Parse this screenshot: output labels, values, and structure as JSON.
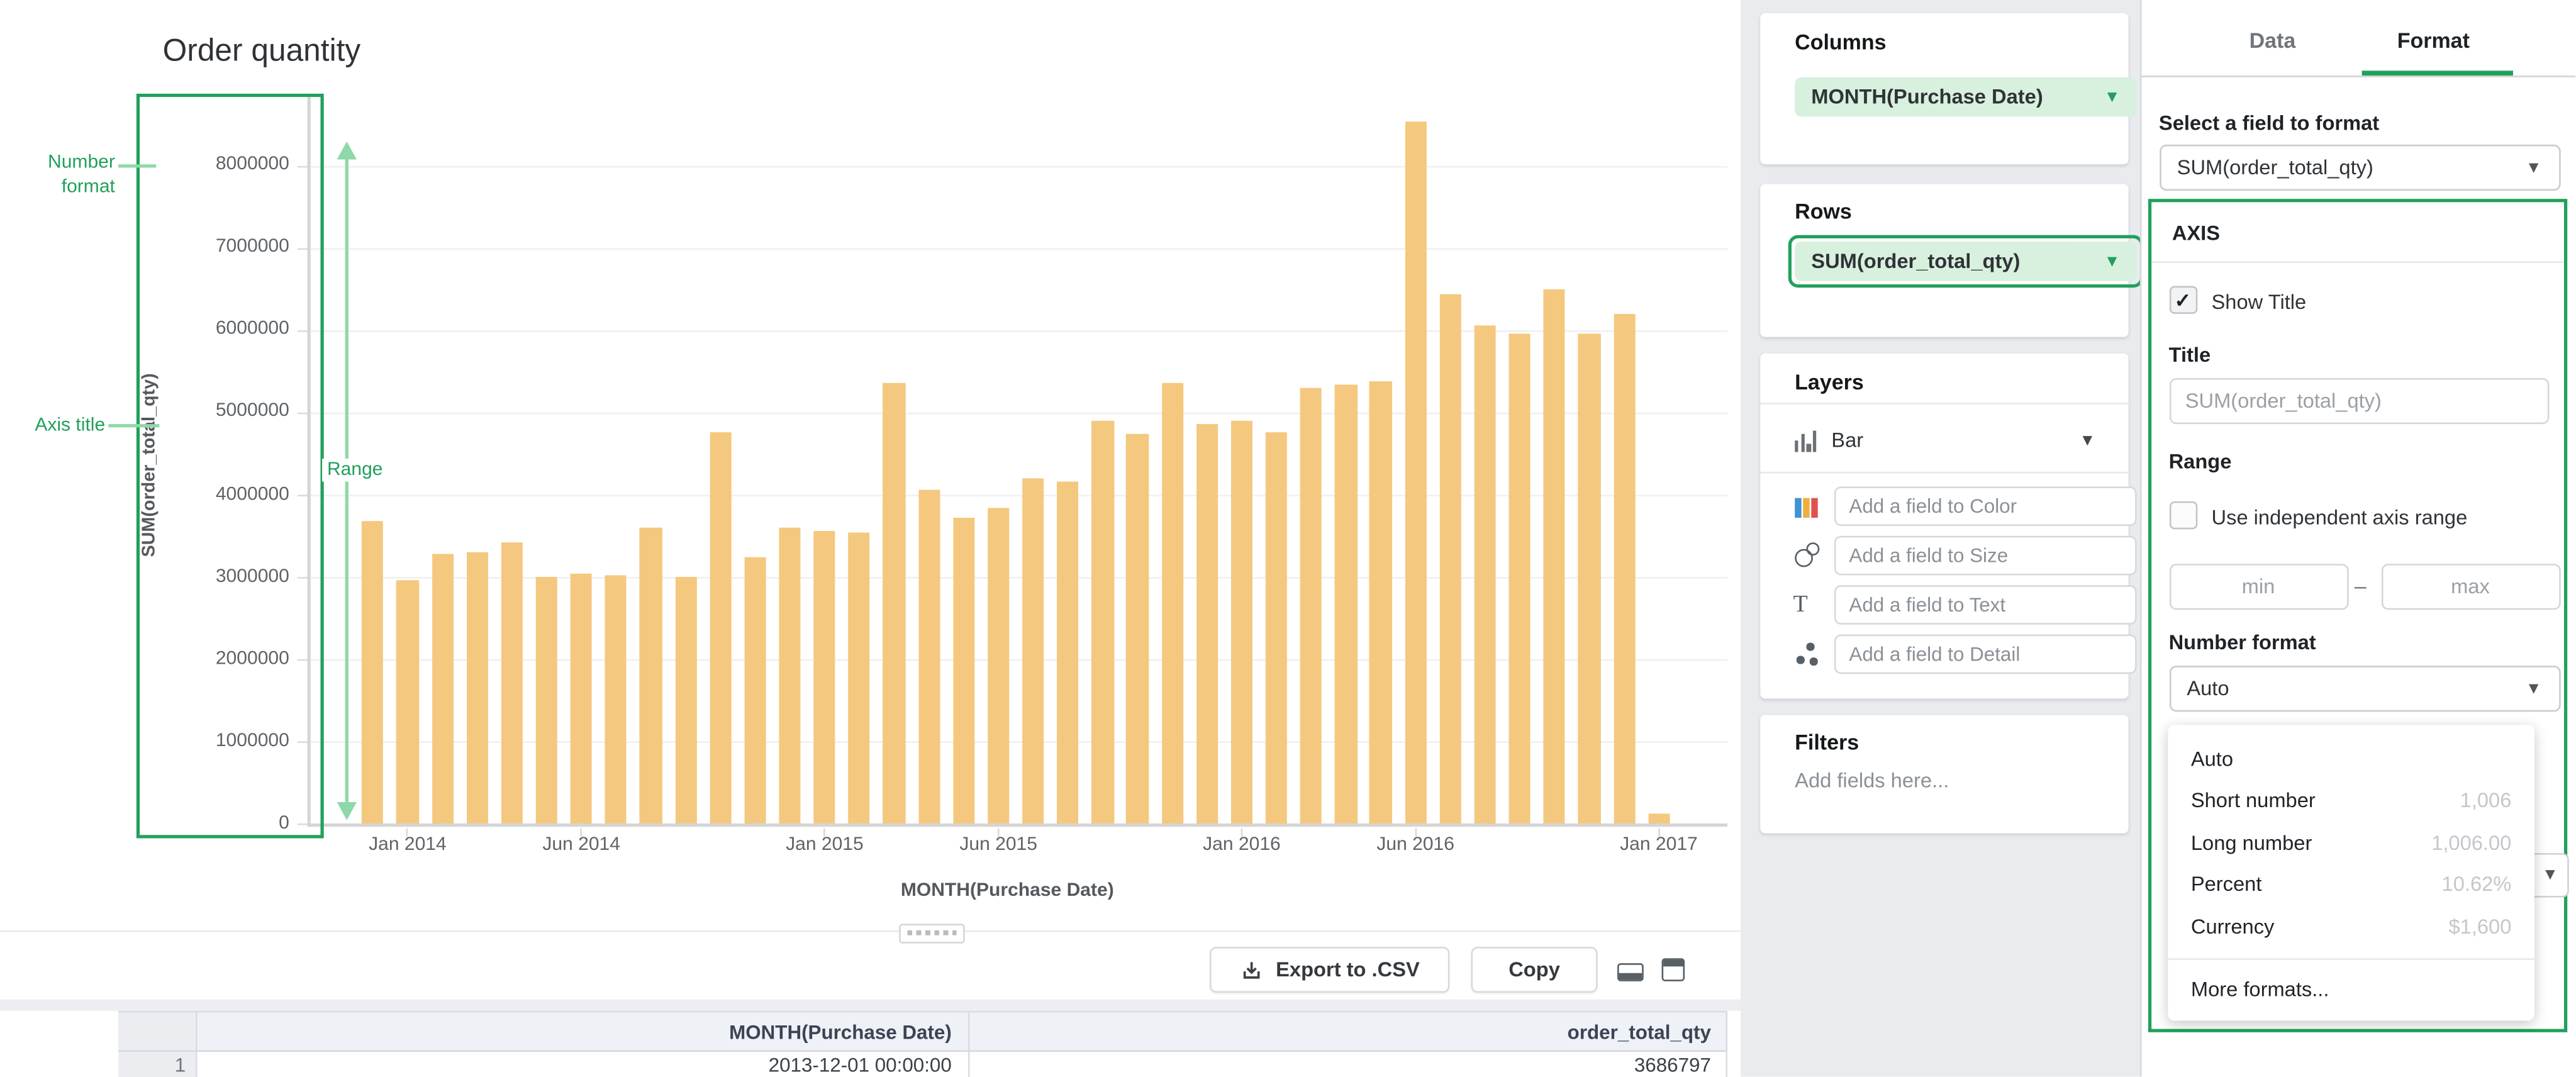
{
  "chart": {
    "title": "Order quantity",
    "x_axis_title": "MONTH(Purchase Date)",
    "y_axis_title": "SUM(order_total_qty)"
  },
  "chart_data": {
    "type": "bar",
    "title": "Order quantity",
    "xlabel": "MONTH(Purchase Date)",
    "ylabel": "SUM(order_total_qty)",
    "ylim": [
      0,
      8500000
    ],
    "grid": true,
    "bar_color": "#f4c87e",
    "y_ticks": [
      "0",
      "1000000",
      "2000000",
      "3000000",
      "4000000",
      "5000000",
      "6000000",
      "7000000",
      "8000000"
    ],
    "x_ticks": [
      {
        "label": "Jan 2014",
        "index": 1
      },
      {
        "label": "Jun 2014",
        "index": 6
      },
      {
        "label": "Jan 2015",
        "index": 13
      },
      {
        "label": "Jun 2015",
        "index": 18
      },
      {
        "label": "Jan 2016",
        "index": 25
      },
      {
        "label": "Jun 2016",
        "index": 30
      },
      {
        "label": "Jan 2017",
        "index": 37
      }
    ],
    "categories": [
      "Dec 2013",
      "Jan 2014",
      "Feb 2014",
      "Mar 2014",
      "Apr 2014",
      "May 2014",
      "Jun 2014",
      "Jul 2014",
      "Aug 2014",
      "Sep 2014",
      "Oct 2014",
      "Nov 2014",
      "Dec 2014",
      "Jan 2015",
      "Feb 2015",
      "Mar 2015",
      "Apr 2015",
      "May 2015",
      "Jun 2015",
      "Jul 2015",
      "Aug 2015",
      "Sep 2015",
      "Oct 2015",
      "Nov 2015",
      "Dec 2015",
      "Jan 2016",
      "Feb 2016",
      "Mar 2016",
      "Apr 2016",
      "May 2016",
      "Jun 2016",
      "Jul 2016",
      "Aug 2016",
      "Sep 2016",
      "Oct 2016",
      "Nov 2016",
      "Dec 2016",
      "Jan 2017"
    ],
    "values": [
      3686797,
      2960000,
      3290000,
      3300000,
      3430000,
      3010000,
      3050000,
      3030000,
      3610000,
      3010000,
      4760000,
      3240000,
      3610000,
      3570000,
      3540000,
      5360000,
      4050000,
      3730000,
      3840000,
      4200000,
      4150000,
      4900000,
      4730000,
      5360000,
      4850000,
      4890000,
      4750000,
      5290000,
      5330000,
      5380000,
      8540000,
      6430000,
      6060000,
      5950000,
      6490000,
      5950000,
      6200000,
      130000
    ]
  },
  "annotations": {
    "number_format": "Number format",
    "axis_title": "Axis title",
    "range": "Range"
  },
  "toolbar": {
    "export_label": "Export to .CSV",
    "copy_label": "Copy"
  },
  "table": {
    "headers": [
      "MONTH(Purchase Date)",
      "order_total_qty"
    ],
    "rows": [
      {
        "num": "1",
        "month": "2013-12-01 00:00:00",
        "qty": "3686797"
      }
    ]
  },
  "shelves": {
    "columns": {
      "title": "Columns",
      "pill": "MONTH(Purchase Date)"
    },
    "rows": {
      "title": "Rows",
      "pill": "SUM(order_total_qty)"
    },
    "layers": {
      "title": "Layers",
      "layer_type": "Bar",
      "fields": [
        {
          "icon": "color-bars-icon",
          "placeholder": "Add a field to Color"
        },
        {
          "icon": "size-circles-icon",
          "placeholder": "Add a field to Size"
        },
        {
          "icon": "text-icon",
          "placeholder": "Add a field to Text"
        },
        {
          "icon": "detail-dots-icon",
          "placeholder": "Add a field to Detail"
        }
      ]
    },
    "filters": {
      "title": "Filters",
      "placeholder": "Add fields here..."
    }
  },
  "format_panel": {
    "tabs": [
      "Data",
      "Format"
    ],
    "active_tab": "Format",
    "field_select": {
      "label": "Select a field to format",
      "value": "SUM(order_total_qty)"
    },
    "axis_section": {
      "title": "AXIS",
      "show_title_label": "Show Title",
      "show_title_checked": "✓",
      "title_label": "Title",
      "title_placeholder": "SUM(order_total_qty)",
      "range_label": "Range",
      "range_checkbox_label": "Use independent axis range",
      "min_placeholder": "min",
      "max_placeholder": "max",
      "range_dash": "–",
      "number_format_label": "Number format",
      "number_format_value": "Auto"
    },
    "number_format_menu": {
      "items": [
        {
          "label": "Auto",
          "example": ""
        },
        {
          "label": "Short number",
          "example": "1,006"
        },
        {
          "label": "Long number",
          "example": "1,006.00"
        },
        {
          "label": "Percent",
          "example": "10.62%"
        },
        {
          "label": "Currency",
          "example": "$1,600"
        }
      ],
      "footer": "More formats..."
    }
  },
  "colors": {
    "accent_green": "#21a05c",
    "light_green": "#8fd8a8",
    "pill_bg": "#d8f0de",
    "bar": "#f4c87e"
  }
}
